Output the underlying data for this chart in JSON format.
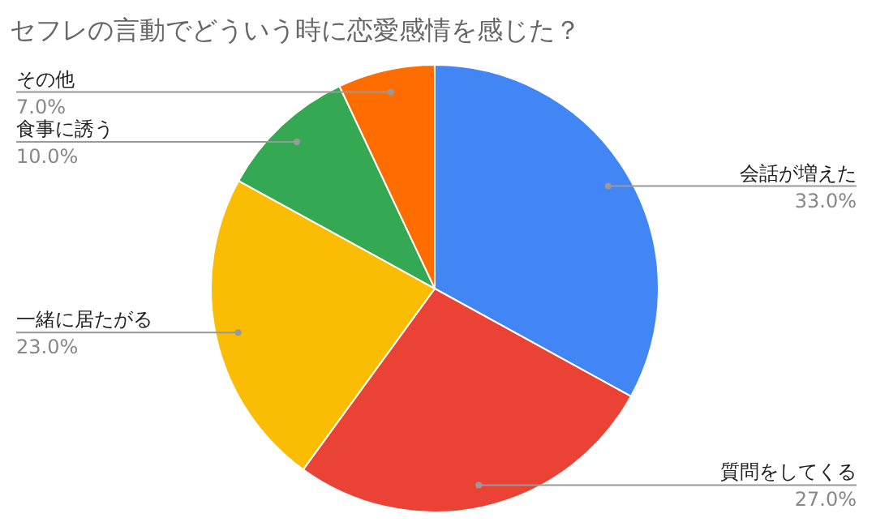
{
  "chart_data": {
    "type": "pie",
    "title": "セフレの言動でどういう時に恋愛感情を感じた？",
    "categories": [
      "会話が増えた",
      "質問をしてくる",
      "一緒に居たがる",
      "食事に誘う",
      "その他"
    ],
    "values": [
      33,
      27,
      23,
      10,
      7
    ],
    "value_labels": [
      "33.0%",
      "27.0%",
      "23.0%",
      "10.0%",
      "7.0%"
    ],
    "colors": [
      "#4285f4",
      "#ea4335",
      "#fbbc04",
      "#34a853",
      "#ff6d01"
    ]
  }
}
